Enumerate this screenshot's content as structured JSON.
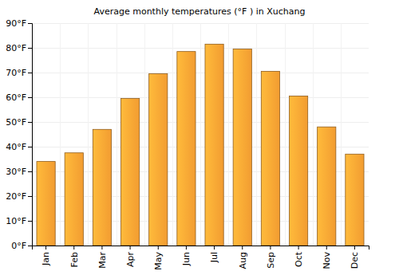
{
  "chart_data": {
    "type": "bar",
    "title": "Average monthly temperatures (°F ) in Xuchang",
    "categories": [
      "Jan",
      "Feb",
      "Mar",
      "Apr",
      "May",
      "Jun",
      "Jul",
      "Aug",
      "Sep",
      "Oct",
      "Nov",
      "Dec"
    ],
    "values": [
      34,
      37.5,
      47,
      59.5,
      69.5,
      78.5,
      81.5,
      79.5,
      70.5,
      60.5,
      48,
      37
    ],
    "color": "#ffa534",
    "ylim": [
      0,
      90
    ],
    "yticks": [
      {
        "value": 0,
        "label": "0°F"
      },
      {
        "value": 10,
        "label": "10°F"
      },
      {
        "value": 20,
        "label": "20°F"
      },
      {
        "value": 30,
        "label": "30°F"
      },
      {
        "value": 40,
        "label": "40°F"
      },
      {
        "value": 50,
        "label": "50°F"
      },
      {
        "value": 60,
        "label": "60°F"
      },
      {
        "value": 70,
        "label": "70°F"
      },
      {
        "value": 80,
        "label": "80°F"
      },
      {
        "value": 90,
        "label": "90°F"
      }
    ],
    "grid": true
  }
}
